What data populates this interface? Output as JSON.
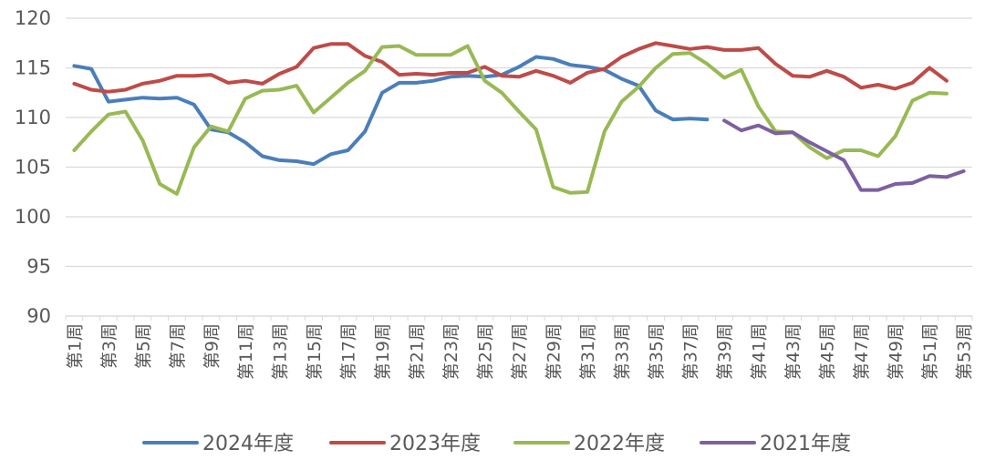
{
  "chart_data": {
    "type": "line",
    "title": "",
    "xlabel": "",
    "ylabel": "",
    "ylim": [
      90,
      120
    ],
    "yticks": [
      90,
      95,
      100,
      105,
      110,
      115,
      120
    ],
    "grid": "horizontal",
    "legend_position": "bottom",
    "x": [
      "第1周",
      "第2周",
      "第3周",
      "第4周",
      "第5周",
      "第6周",
      "第7周",
      "第8周",
      "第9周",
      "第10周",
      "第11周",
      "第12周",
      "第13周",
      "第14周",
      "第15周",
      "第16周",
      "第17周",
      "第18周",
      "第19周",
      "第20周",
      "第21周",
      "第22周",
      "第23周",
      "第24周",
      "第25周",
      "第26周",
      "第27周",
      "第28周",
      "第29周",
      "第30周",
      "第31周",
      "第32周",
      "第33周",
      "第34周",
      "第35周",
      "第36周",
      "第37周",
      "第38周",
      "第39周",
      "第40周",
      "第41周",
      "第42周",
      "第43周",
      "第44周",
      "第45周",
      "第46周",
      "第47周",
      "第48周",
      "第49周",
      "第50周",
      "第51周",
      "第52周",
      "第53周"
    ],
    "x_tick_labels": [
      "第1周",
      "第3周",
      "第5周",
      "第7周",
      "第9周",
      "第11周",
      "第13周",
      "第15周",
      "第17周",
      "第19周",
      "第21周",
      "第23周",
      "第25周",
      "第27周",
      "第29周",
      "第31周",
      "第33周",
      "第35周",
      "第37周",
      "第39周",
      "第41周",
      "第43周",
      "第45周",
      "第47周",
      "第49周",
      "第51周",
      "第53周"
    ],
    "series": [
      {
        "name": "2024年度",
        "color": "#4a7ebb",
        "values": [
          115.2,
          114.9,
          111.6,
          111.8,
          112.0,
          111.9,
          112.0,
          111.3,
          108.8,
          108.5,
          107.5,
          106.1,
          105.7,
          105.6,
          105.3,
          106.3,
          106.7,
          108.6,
          112.5,
          113.5,
          113.5,
          113.7,
          114.1,
          114.2,
          114.1,
          114.3,
          115.1,
          116.1,
          115.9,
          115.3,
          115.1,
          114.8,
          113.9,
          113.2,
          110.7,
          109.8,
          109.9,
          109.8,
          null,
          null,
          null,
          null,
          null,
          null,
          null,
          null,
          null,
          null,
          null,
          null,
          null,
          null,
          null
        ]
      },
      {
        "name": "2023年度",
        "color": "#be4b48",
        "values": [
          113.4,
          112.8,
          112.6,
          112.8,
          113.4,
          113.7,
          114.2,
          114.2,
          114.3,
          113.5,
          113.7,
          113.4,
          114.4,
          115.1,
          117.0,
          117.4,
          117.4,
          116.2,
          115.6,
          114.3,
          114.4,
          114.3,
          114.5,
          114.5,
          115.1,
          114.2,
          114.1,
          114.7,
          114.2,
          113.5,
          114.5,
          114.9,
          116.1,
          116.9,
          117.5,
          117.2,
          116.9,
          117.1,
          116.8,
          116.8,
          117.0,
          115.4,
          114.2,
          114.1,
          114.7,
          114.1,
          113.0,
          113.3,
          112.9,
          113.5,
          115.0,
          113.7,
          null
        ]
      },
      {
        "name": "2022年度",
        "color": "#98b954",
        "values": [
          106.7,
          108.6,
          110.3,
          110.6,
          107.7,
          103.3,
          102.3,
          107.0,
          109.1,
          108.6,
          111.9,
          112.7,
          112.8,
          113.2,
          110.5,
          112.0,
          113.5,
          114.7,
          117.1,
          117.2,
          116.3,
          116.3,
          116.3,
          117.2,
          113.7,
          112.5,
          110.6,
          108.8,
          103.0,
          102.4,
          102.5,
          108.6,
          111.6,
          113.1,
          115.0,
          116.4,
          116.5,
          115.4,
          114.0,
          114.8,
          111.1,
          108.6,
          108.5,
          107.0,
          105.9,
          106.7,
          106.7,
          106.1,
          108.1,
          111.7,
          112.5,
          112.4,
          null
        ]
      },
      {
        "name": "2021年度",
        "color": "#7d60a0",
        "values": [
          null,
          null,
          null,
          null,
          null,
          null,
          null,
          null,
          null,
          null,
          null,
          null,
          null,
          null,
          null,
          null,
          null,
          null,
          null,
          null,
          null,
          null,
          null,
          null,
          null,
          null,
          null,
          null,
          null,
          null,
          null,
          null,
          null,
          null,
          null,
          null,
          null,
          null,
          109.7,
          108.7,
          109.2,
          108.4,
          108.5,
          107.5,
          106.6,
          105.7,
          102.7,
          102.7,
          103.3,
          103.4,
          104.1,
          104.0,
          104.6
        ]
      }
    ]
  }
}
